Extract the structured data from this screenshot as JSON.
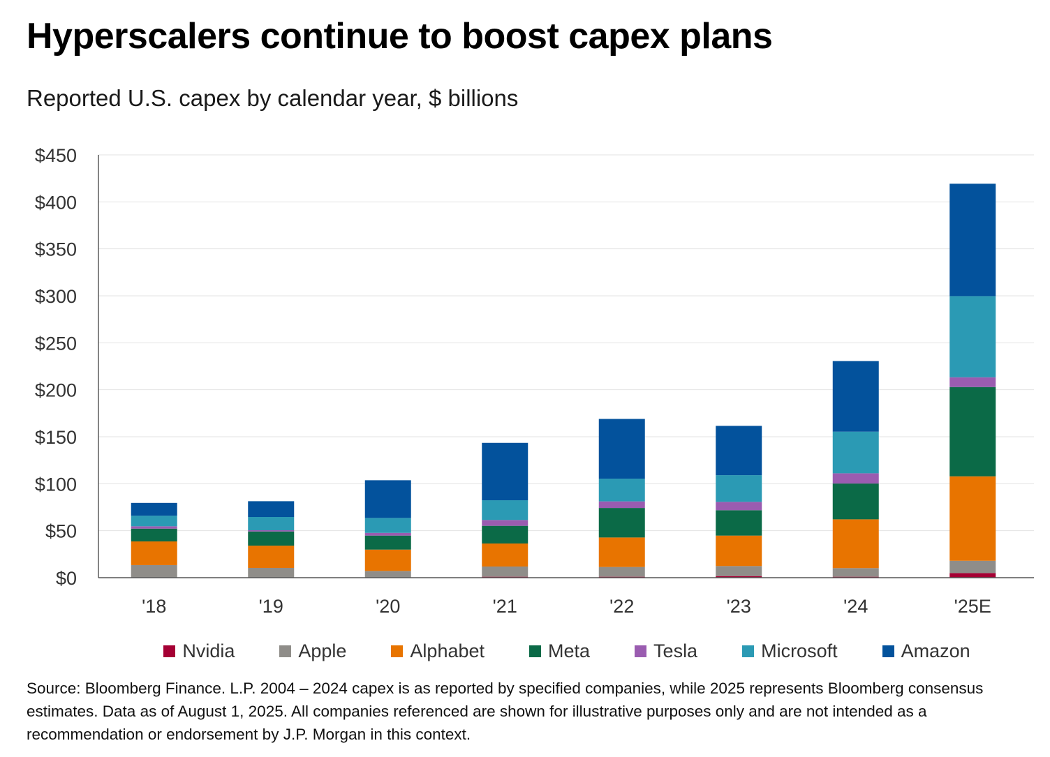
{
  "header": {
    "title": "Hyperscalers continue to boost capex plans",
    "subtitle": "Reported U.S. capex by calendar year, $ billions"
  },
  "footnote": "Source: Bloomberg Finance. L.P. 2004 – 2024 capex is as reported by specified companies, while 2025 represents Bloomberg consensus estimates. Data as of August 1, 2025. All companies referenced are shown for illustrative purposes only and are not intended as a recommendation or endorsement by J.P. Morgan in this context.",
  "chart_data": {
    "type": "bar",
    "stacked": true,
    "title": "Hyperscalers continue to boost capex plans",
    "subtitle": "Reported U.S. capex by calendar year, $ billions",
    "xlabel": "",
    "ylabel": "",
    "categories": [
      "'18",
      "'19",
      "'20",
      "'21",
      "'22",
      "'23",
      "'24",
      "'25E"
    ],
    "ylim": [
      0,
      450
    ],
    "yticks": [
      0,
      50,
      100,
      150,
      200,
      250,
      300,
      350,
      400,
      450
    ],
    "ytick_labels": [
      "$0",
      "$50",
      "$100",
      "$150",
      "$200",
      "$250",
      "$300",
      "$350",
      "$400",
      "$450"
    ],
    "grid": true,
    "legend_position": "bottom",
    "series": [
      {
        "name": "Nvidia",
        "color": "#a50034",
        "values": [
          0.3,
          0.2,
          0.2,
          1.0,
          1.0,
          1.7,
          1.0,
          4.9
        ]
      },
      {
        "name": "Apple",
        "color": "#8f8d89",
        "values": [
          13.1,
          10.2,
          7.0,
          10.9,
          10.4,
          10.7,
          9.2,
          13.1
        ]
      },
      {
        "name": "Alphabet",
        "color": "#e87400",
        "values": [
          25.2,
          23.7,
          22.7,
          24.5,
          31.4,
          32.4,
          51.9,
          89.9
        ]
      },
      {
        "name": "Meta",
        "color": "#0b6a47",
        "values": [
          13.6,
          15.1,
          14.9,
          18.8,
          31.4,
          27.0,
          38.1,
          95.0
        ]
      },
      {
        "name": "Tesla",
        "color": "#9a5cb0",
        "values": [
          2.5,
          1.3,
          2.9,
          6.2,
          7.0,
          8.9,
          10.9,
          10.4
        ]
      },
      {
        "name": "Microsoft",
        "color": "#2b9ab4",
        "values": [
          11.3,
          14.1,
          15.9,
          21.0,
          24.2,
          28.4,
          44.3,
          86.4
        ]
      },
      {
        "name": "Amazon",
        "color": "#03529c",
        "values": [
          13.6,
          16.8,
          40.1,
          61.1,
          63.6,
          52.5,
          75.2,
          119.6
        ]
      }
    ]
  }
}
